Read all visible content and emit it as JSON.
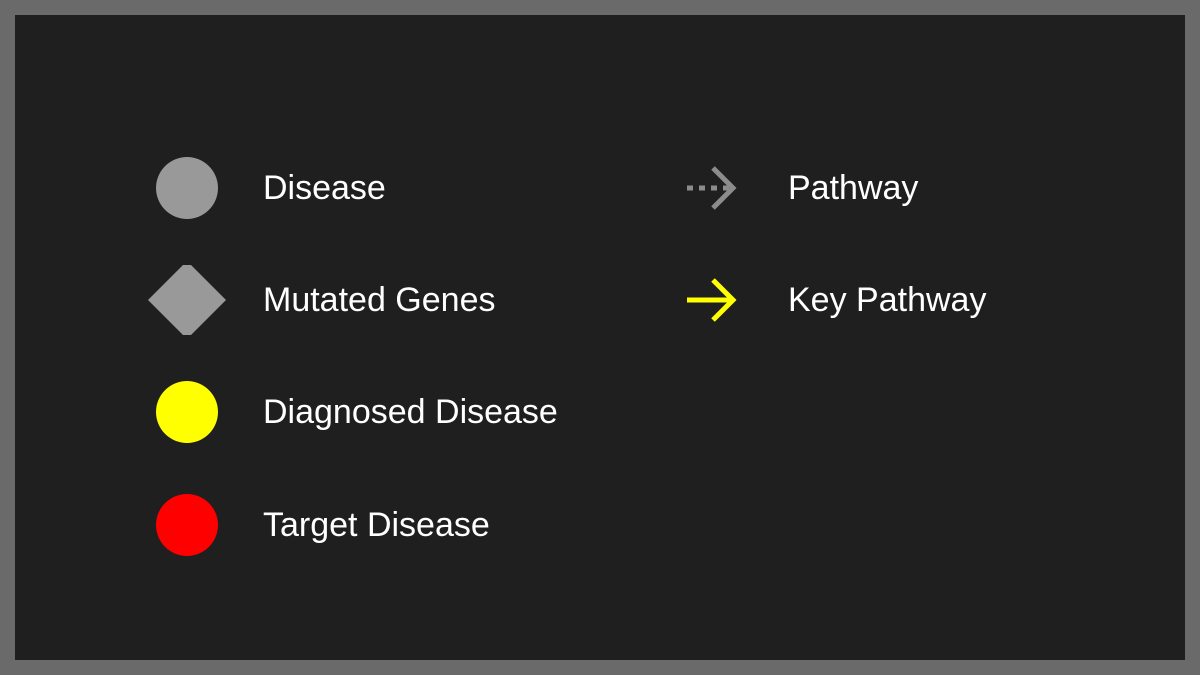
{
  "legend": {
    "nodes": [
      {
        "label": "Disease",
        "shape": "circle",
        "color": "#999999"
      },
      {
        "label": "Mutated Genes",
        "shape": "diamond",
        "color": "#999999"
      },
      {
        "label": "Diagnosed Disease",
        "shape": "circle",
        "color": "#ffff00"
      },
      {
        "label": "Target Disease",
        "shape": "circle",
        "color": "#ff0000"
      }
    ],
    "edges": [
      {
        "label": "Pathway",
        "style": "dotted-arrow",
        "color": "#8c8c8c"
      },
      {
        "label": "Key Pathway",
        "style": "solid-arrow",
        "color": "#ffff00"
      }
    ]
  },
  "colors": {
    "background": "#1f1f1f",
    "border": "#6a6a6a",
    "text": "#ffffff"
  }
}
